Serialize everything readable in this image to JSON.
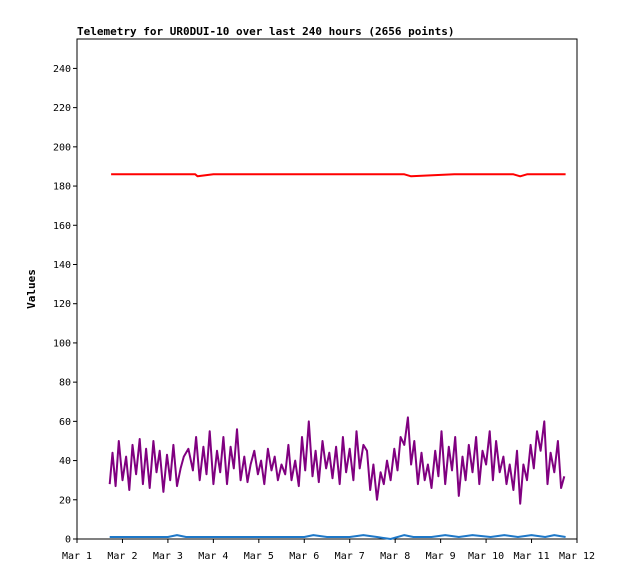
{
  "chart_data": {
    "type": "line",
    "title": "Telemetry for UR0DUI-10 over last 240 hours (2656 points)",
    "xlabel": "",
    "ylabel": "Values",
    "x_ticks": [
      "Mar 1",
      "Mar 2",
      "Mar 3",
      "Mar 4",
      "Mar 5",
      "Mar 6",
      "Mar 7",
      "Mar 8",
      "Mar 9",
      "Mar 10",
      "Mar 11",
      "Mar 12"
    ],
    "x_range_days": [
      1,
      12
    ],
    "y_ticks": [
      0,
      20,
      40,
      60,
      80,
      100,
      120,
      140,
      160,
      180,
      200,
      220,
      240
    ],
    "ylim": [
      0,
      255
    ],
    "grid": false,
    "series": [
      {
        "color": "#ff0000",
        "x": [
          1.75,
          3.6,
          3.65,
          4.0,
          4.75,
          6.2,
          7.8,
          8.2,
          8.35,
          9.3,
          10.6,
          10.75,
          10.9,
          11.3,
          11.75
        ],
        "values": [
          186,
          186,
          185,
          186,
          186,
          186,
          186,
          186,
          185,
          186,
          186,
          185,
          186,
          186,
          186
        ]
      },
      {
        "color": "#800080",
        "x": [
          1.72,
          1.78,
          1.85,
          1.92,
          2.0,
          2.08,
          2.15,
          2.22,
          2.3,
          2.38,
          2.45,
          2.52,
          2.6,
          2.68,
          2.75,
          2.82,
          2.9,
          2.98,
          3.05,
          3.12,
          3.2,
          3.28,
          3.35,
          3.45,
          3.55,
          3.62,
          3.7,
          3.78,
          3.85,
          3.92,
          4.0,
          4.08,
          4.15,
          4.22,
          4.3,
          4.38,
          4.45,
          4.52,
          4.6,
          4.68,
          4.75,
          4.82,
          4.9,
          4.98,
          5.05,
          5.12,
          5.2,
          5.28,
          5.35,
          5.42,
          5.5,
          5.58,
          5.65,
          5.72,
          5.8,
          5.88,
          5.95,
          6.02,
          6.1,
          6.18,
          6.25,
          6.32,
          6.4,
          6.48,
          6.55,
          6.62,
          6.7,
          6.78,
          6.85,
          6.92,
          7.0,
          7.08,
          7.15,
          7.22,
          7.3,
          7.38,
          7.45,
          7.52,
          7.6,
          7.68,
          7.75,
          7.82,
          7.9,
          7.98,
          8.05,
          8.12,
          8.2,
          8.28,
          8.35,
          8.42,
          8.5,
          8.58,
          8.65,
          8.72,
          8.8,
          8.88,
          8.95,
          9.02,
          9.1,
          9.18,
          9.25,
          9.32,
          9.4,
          9.48,
          9.55,
          9.62,
          9.7,
          9.78,
          9.85,
          9.92,
          10.0,
          10.08,
          10.15,
          10.22,
          10.3,
          10.38,
          10.45,
          10.52,
          10.6,
          10.68,
          10.75,
          10.82,
          10.9,
          10.98,
          11.05,
          11.12,
          11.2,
          11.28,
          11.35,
          11.42,
          11.5,
          11.58,
          11.65,
          11.72
        ],
        "values": [
          28,
          44,
          27,
          50,
          30,
          42,
          25,
          48,
          33,
          51,
          28,
          46,
          26,
          50,
          34,
          45,
          24,
          43,
          30,
          48,
          27,
          36,
          42,
          46,
          35,
          52,
          30,
          47,
          33,
          55,
          28,
          45,
          34,
          52,
          28,
          47,
          36,
          56,
          30,
          42,
          29,
          38,
          45,
          33,
          40,
          28,
          46,
          35,
          42,
          30,
          38,
          33,
          48,
          30,
          40,
          27,
          52,
          35,
          60,
          32,
          45,
          29,
          50,
          36,
          44,
          31,
          47,
          28,
          52,
          34,
          46,
          30,
          55,
          36,
          48,
          45,
          25,
          38,
          20,
          34,
          28,
          40,
          30,
          46,
          35,
          52,
          48,
          62,
          38,
          50,
          28,
          44,
          30,
          38,
          26,
          45,
          32,
          55,
          28,
          47,
          35,
          52,
          22,
          42,
          30,
          48,
          34,
          52,
          28,
          45,
          38,
          55,
          30,
          50,
          34,
          42,
          28,
          38,
          25,
          45,
          18,
          38,
          30,
          48,
          36,
          55,
          45,
          60,
          28,
          44,
          34,
          50,
          26,
          32
        ]
      },
      {
        "color": "#1e78c8",
        "x": [
          1.72,
          3.0,
          3.2,
          3.4,
          4.5,
          6.0,
          6.2,
          6.5,
          7.0,
          7.3,
          7.6,
          7.9,
          8.2,
          8.4,
          8.8,
          9.1,
          9.4,
          9.7,
          10.1,
          10.4,
          10.7,
          11.0,
          11.3,
          11.5,
          11.75
        ],
        "values": [
          1,
          1,
          2,
          1,
          1,
          1,
          2,
          1,
          1,
          2,
          1,
          0,
          2,
          1,
          1,
          2,
          1,
          2,
          1,
          2,
          1,
          2,
          1,
          2,
          1
        ]
      }
    ]
  }
}
